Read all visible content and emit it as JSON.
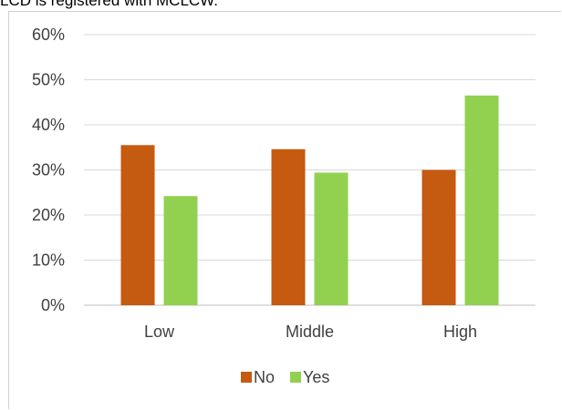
{
  "caption": "LCD is registered with MCLCW.",
  "chart_data": {
    "type": "bar",
    "categories": [
      "Low",
      "Middle",
      "High"
    ],
    "series": [
      {
        "name": "No",
        "values": [
          35.5,
          34.6,
          30.0
        ],
        "color": "#c55a11"
      },
      {
        "name": "Yes",
        "values": [
          24.2,
          29.4,
          46.5
        ],
        "color": "#92d050"
      }
    ],
    "ylim": [
      0,
      60
    ],
    "yticks": [
      "0%",
      "10%",
      "20%",
      "30%",
      "40%",
      "50%",
      "60%"
    ],
    "grid": true,
    "legend_position": "bottom"
  }
}
